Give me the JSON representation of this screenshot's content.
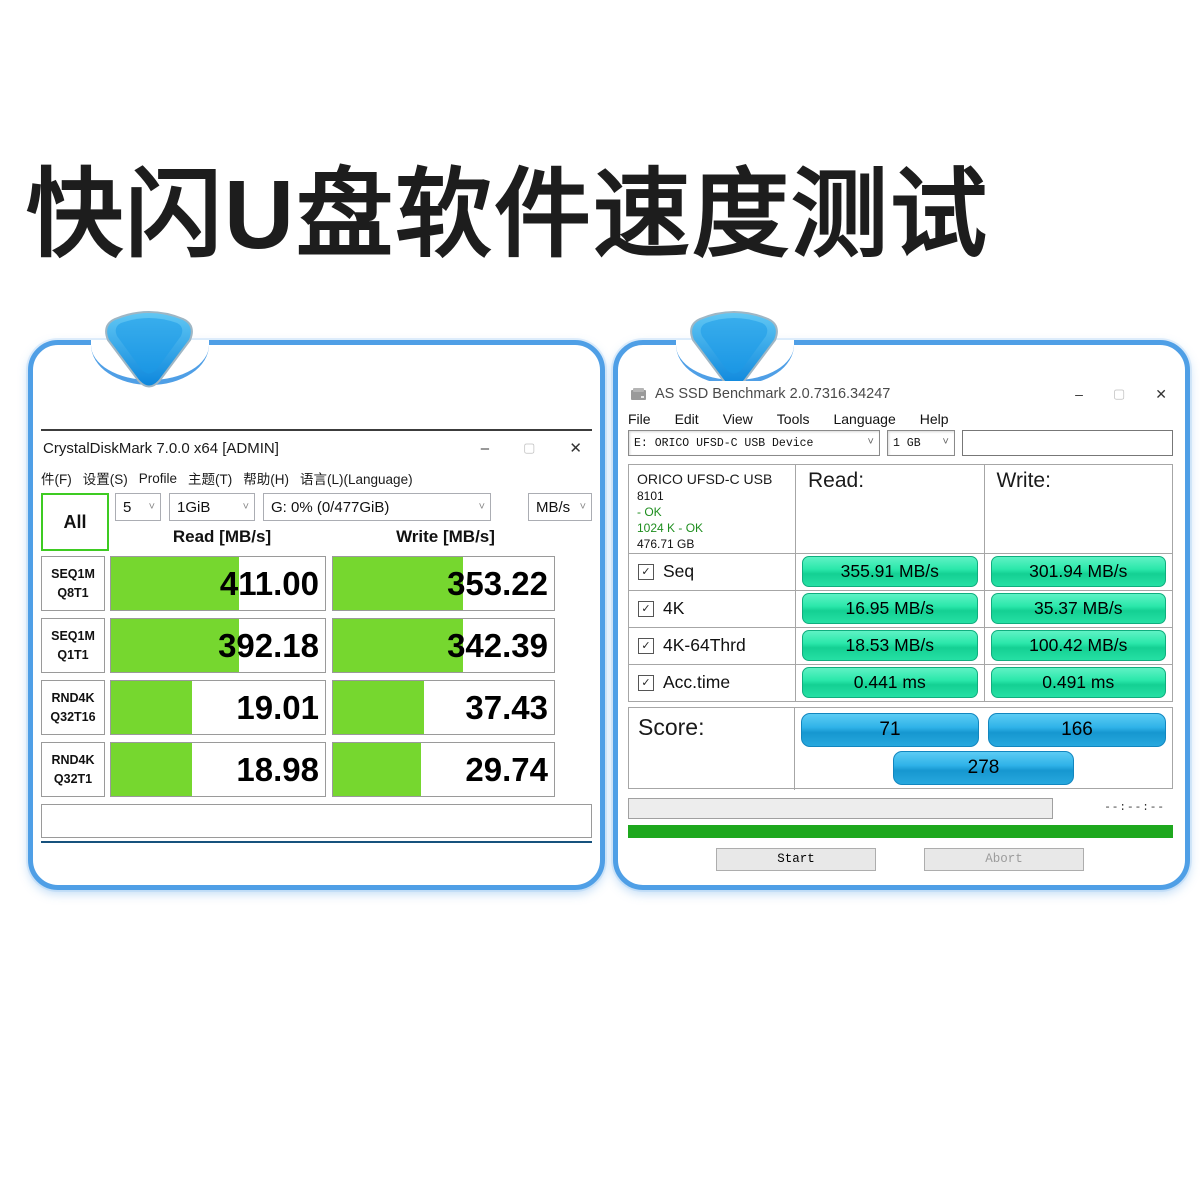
{
  "page": {
    "title": "快闪U盘软件速度测试"
  },
  "icons": {
    "minimize": "–",
    "maximize": "▢",
    "close": "✕",
    "chevron": "˅",
    "check": "✓"
  },
  "cdm": {
    "title": "CrystalDiskMark 7.0.0 x64 [ADMIN]",
    "menu": {
      "file": "件(F)",
      "settings": "设置(S)",
      "profile": "Profile",
      "theme": "主题(T)",
      "help": "帮助(H)",
      "language": "语言(L)(Language)"
    },
    "all_button": "All",
    "test_count": "5",
    "test_size": "1GiB",
    "target_drive": "G: 0% (0/477GiB)",
    "unit": "MB/s",
    "read_header": "Read [MB/s]",
    "write_header": "Write [MB/s]",
    "rows": [
      {
        "name": "SEQ1M",
        "queue": "Q8T1",
        "read": "411.00",
        "write": "353.22",
        "read_pct": 60,
        "write_pct": 59
      },
      {
        "name": "SEQ1M",
        "queue": "Q1T1",
        "read": "392.18",
        "write": "342.39",
        "read_pct": 60,
        "write_pct": 59
      },
      {
        "name": "RND4K",
        "queue": "Q32T16",
        "read": "19.01",
        "write": "37.43",
        "read_pct": 38,
        "write_pct": 41
      },
      {
        "name": "RND4K",
        "queue": "Q32T1",
        "read": "18.98",
        "write": "29.74",
        "read_pct": 38,
        "write_pct": 40
      }
    ]
  },
  "asssd": {
    "title": "AS SSD Benchmark 2.0.7316.34247",
    "menu": {
      "file": "File",
      "edit": "Edit",
      "view": "View",
      "tools": "Tools",
      "language": "Language",
      "help": "Help"
    },
    "drive_combo": "E: ORICO UFSD-C USB Device",
    "size_combo": "1 GB",
    "drive_info": {
      "name": "ORICO UFSD-C USB",
      "firmware": "8101",
      "status1": "- OK",
      "status2": "1024 K - OK",
      "capacity": "476.71 GB"
    },
    "read_header": "Read:",
    "write_header": "Write:",
    "rows": [
      {
        "label": "Seq",
        "read": "355.91 MB/s",
        "write": "301.94 MB/s"
      },
      {
        "label": "4K",
        "read": "16.95 MB/s",
        "write": "35.37 MB/s"
      },
      {
        "label": "4K-64Thrd",
        "read": "18.53 MB/s",
        "write": "100.42 MB/s"
      },
      {
        "label": "Acc.time",
        "read": "0.441 ms",
        "write": "0.491 ms"
      }
    ],
    "score_label": "Score:",
    "score_read": "71",
    "score_write": "166",
    "score_total": "278",
    "elapsed": "--:--:--",
    "start_button": "Start",
    "abort_button": "Abort"
  },
  "colors": {
    "card_border": "#4f9fe6",
    "cdm_bar": "#76d72f",
    "teal_pill": "#25e0a4",
    "blue_pill": "#29ace4",
    "green_progress": "#1ea81e"
  }
}
